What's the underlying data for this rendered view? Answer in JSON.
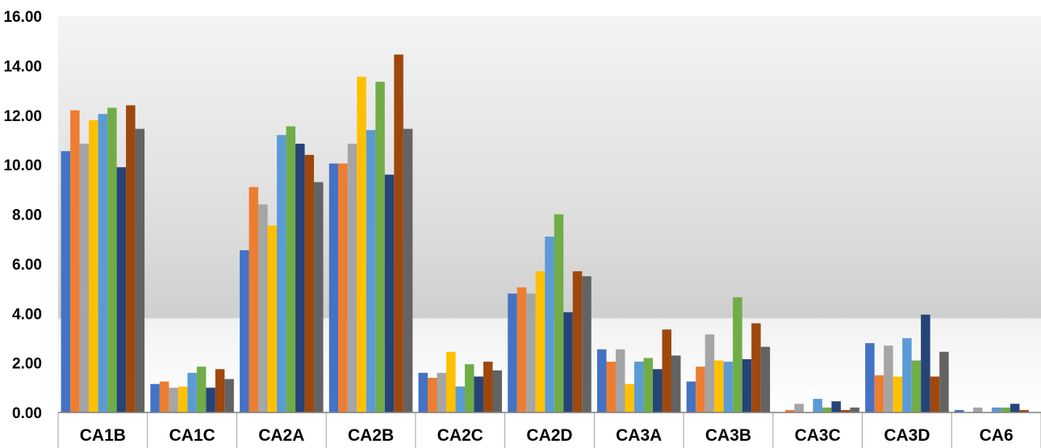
{
  "chart_data": {
    "type": "bar",
    "title": "",
    "xlabel": "",
    "ylabel": "",
    "ylim": [
      0,
      16
    ],
    "yticks": [
      "0.00",
      "2.00",
      "4.00",
      "6.00",
      "8.00",
      "10.00",
      "12.00",
      "14.00",
      "16.00"
    ],
    "grid": false,
    "legend": "none",
    "categories": [
      "CA1B",
      "CA1C",
      "CA2A",
      "CA2B",
      "CA2C",
      "CA2D",
      "CA3A",
      "CA3B",
      "CA3C",
      "CA3D",
      "CA6"
    ],
    "series": [
      {
        "color": "#4472C4",
        "values": [
          10.55,
          1.15,
          6.55,
          10.05,
          1.6,
          4.8,
          2.55,
          1.25,
          0.0,
          2.8,
          0.1
        ]
      },
      {
        "color": "#ED7D31",
        "values": [
          12.2,
          1.25,
          9.1,
          10.05,
          1.4,
          5.05,
          2.05,
          1.85,
          0.1,
          1.5,
          0.0
        ]
      },
      {
        "color": "#A5A5A5",
        "values": [
          10.85,
          1.0,
          8.4,
          10.85,
          1.6,
          4.8,
          2.55,
          3.15,
          0.35,
          2.7,
          0.2
        ]
      },
      {
        "color": "#FFC000",
        "values": [
          11.8,
          1.05,
          7.55,
          13.55,
          2.45,
          5.7,
          1.15,
          2.1,
          0.0,
          1.45,
          0.0
        ]
      },
      {
        "color": "#5B9BD5",
        "values": [
          12.05,
          1.6,
          11.2,
          11.4,
          1.05,
          7.1,
          2.05,
          2.05,
          0.55,
          3.0,
          0.2
        ]
      },
      {
        "color": "#70AD47",
        "values": [
          12.3,
          1.85,
          11.55,
          13.35,
          1.95,
          8.0,
          2.2,
          4.65,
          0.2,
          2.1,
          0.2
        ]
      },
      {
        "color": "#264478",
        "values": [
          9.9,
          1.0,
          10.85,
          9.6,
          1.45,
          4.05,
          1.75,
          2.15,
          0.45,
          3.95,
          0.35
        ]
      },
      {
        "color": "#9E480E",
        "values": [
          12.4,
          1.75,
          10.4,
          14.45,
          2.05,
          5.7,
          3.35,
          3.6,
          0.1,
          1.45,
          0.1
        ]
      },
      {
        "color": "#636363",
        "values": [
          11.45,
          1.35,
          9.3,
          11.45,
          1.7,
          5.5,
          2.3,
          2.65,
          0.2,
          2.45,
          0.0
        ]
      }
    ]
  }
}
